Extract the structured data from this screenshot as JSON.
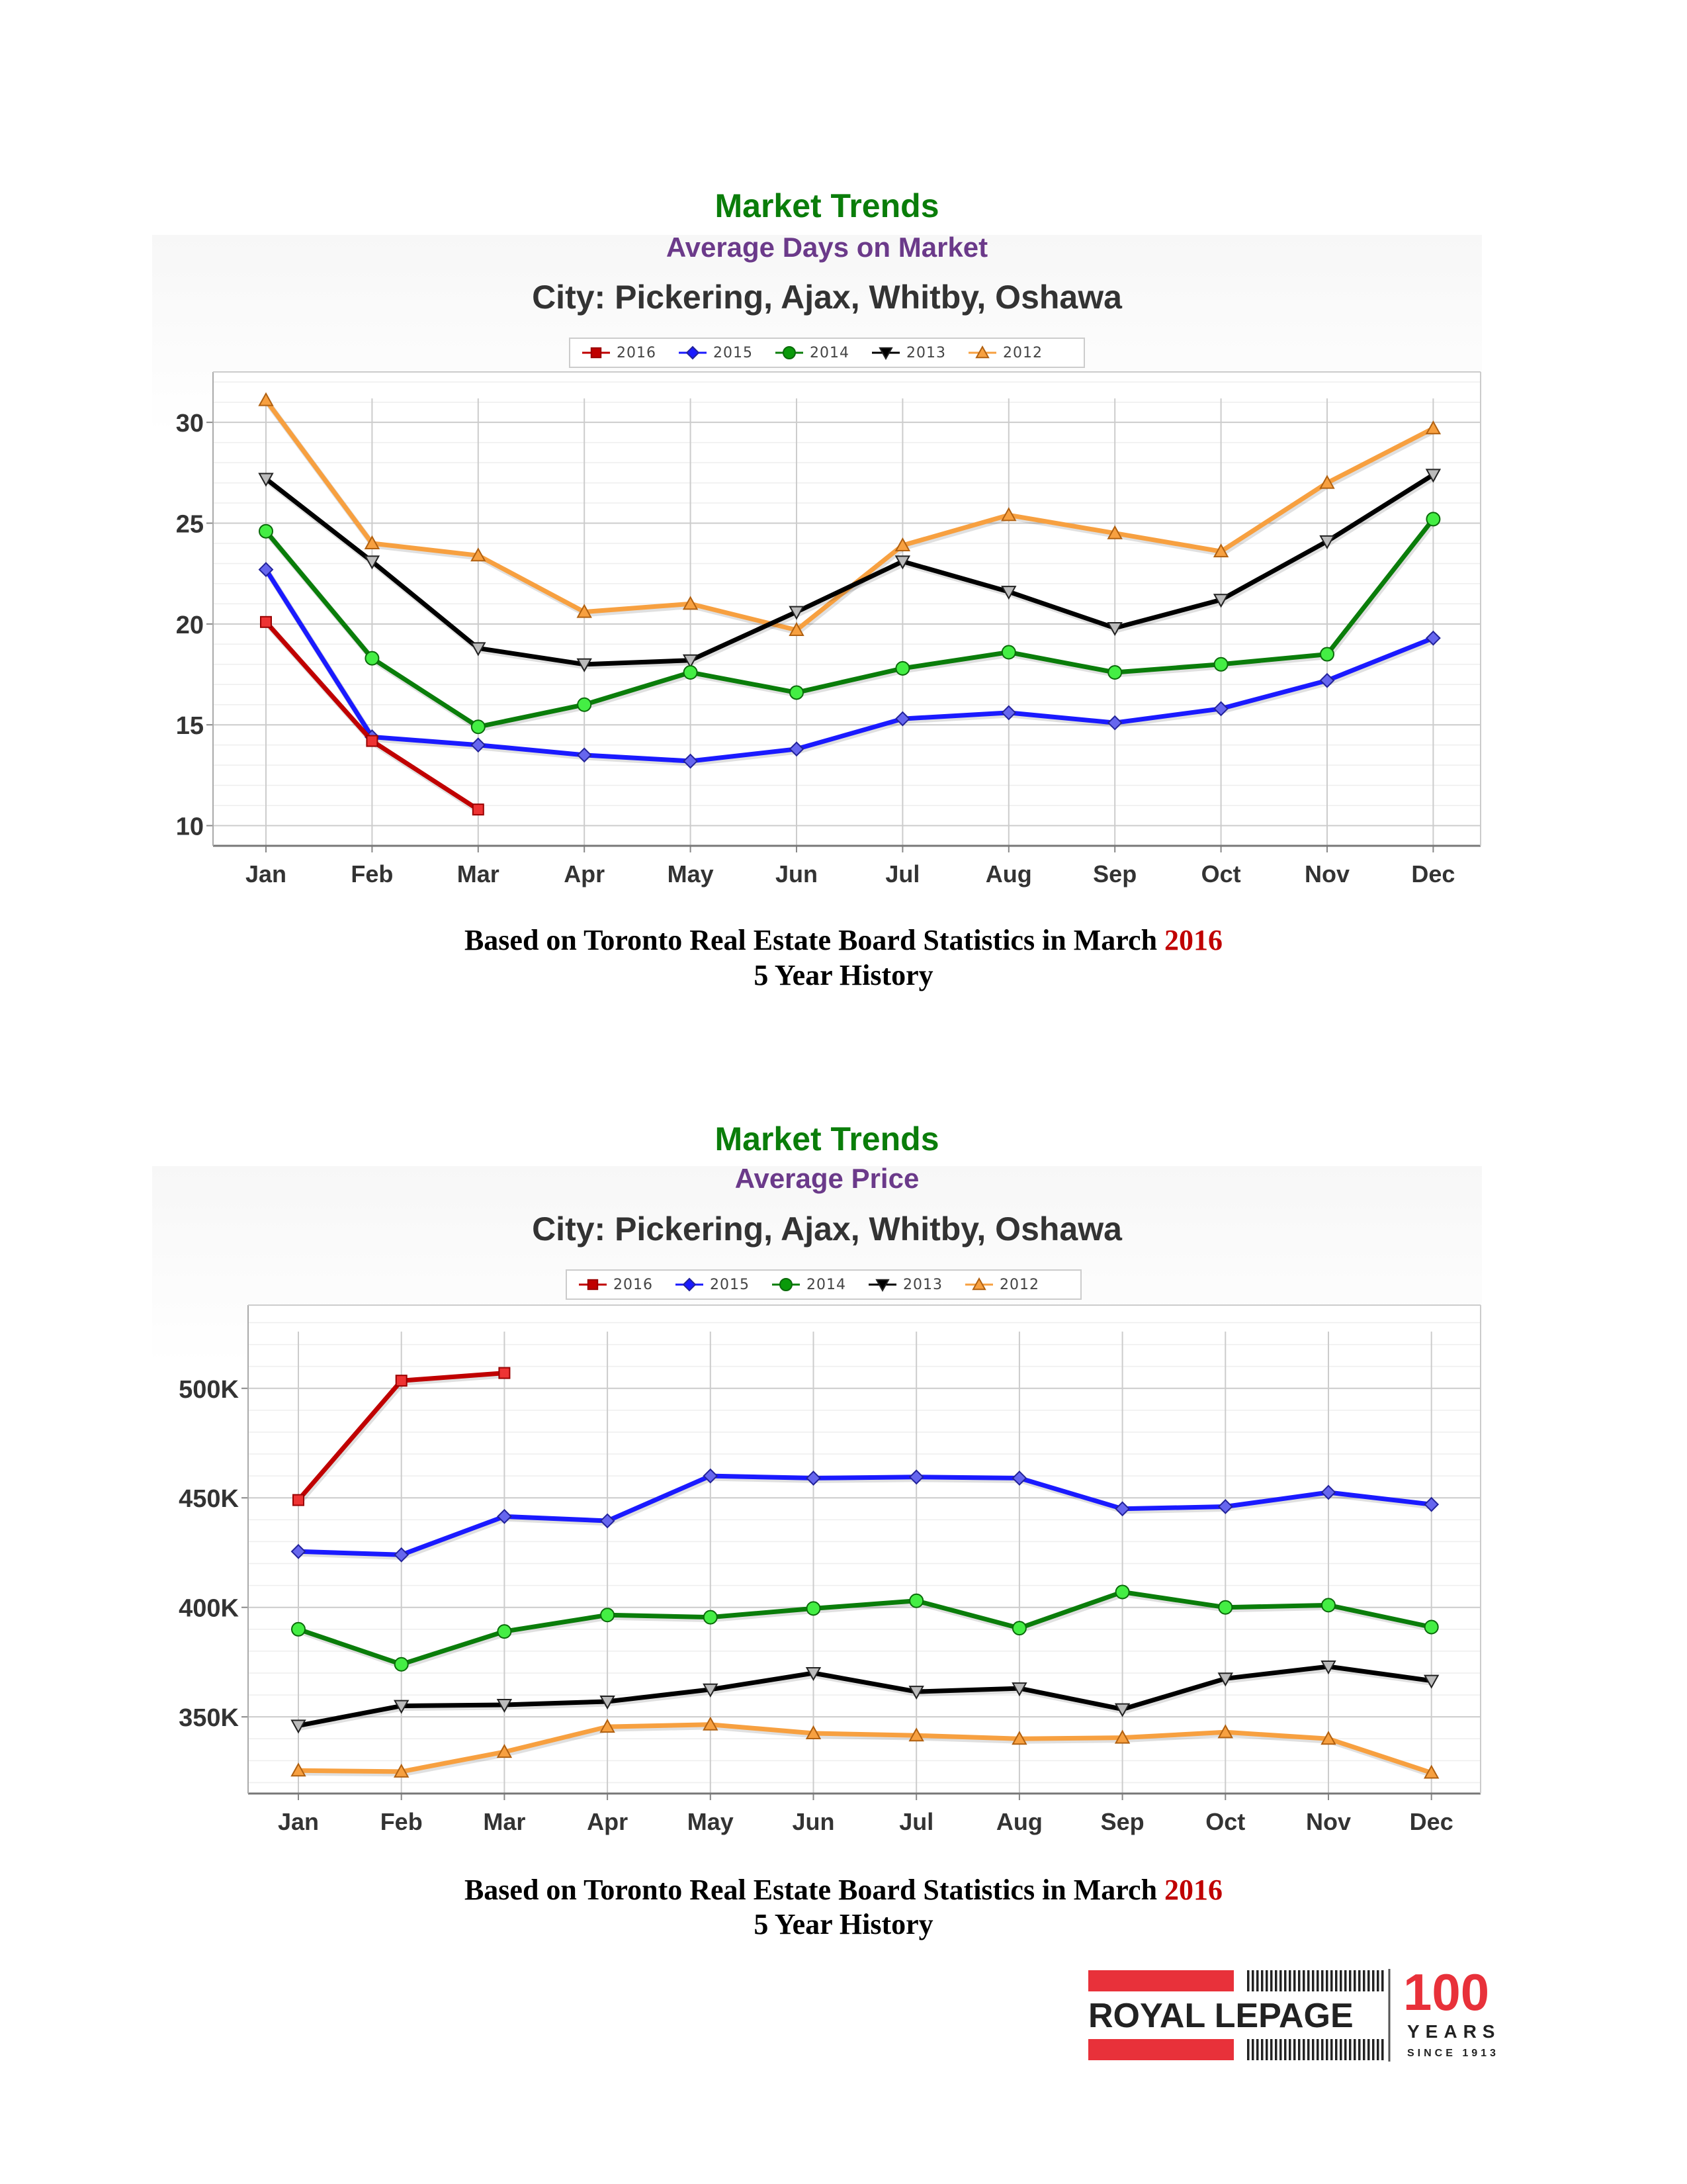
{
  "chart1": {
    "section_title": "Market Trends",
    "subtitle": "Average Days on Market",
    "city_title": "City: Pickering, Ajax, Whitby, Oshawa",
    "caption_line1": "Based on Toronto Real Estate Board Statistics in March",
    "caption_year": "2016",
    "caption_line2": "5  Year History"
  },
  "chart2": {
    "section_title": "Market Trends",
    "subtitle": "Average Price",
    "city_title": "City: Pickering, Ajax, Whitby, Oshawa",
    "caption_line1": "Based on Toronto Real Estate Board Statistics in March",
    "caption_year": "2016",
    "caption_line2": "5 Year History"
  },
  "logo": {
    "brand": "ROYAL LEPAGE",
    "anniversary": "100",
    "years": "YEARS",
    "since": "SINCE 1913",
    "brand_color": "#e8313a"
  },
  "colors": {
    "2016": "#c00000",
    "2015": "#1a1aff",
    "2014": "#0a7d0a",
    "2013": "#000000",
    "2012": "#f7a040"
  },
  "chart_data": [
    {
      "type": "line",
      "title": "Average Days on Market",
      "subtitle": "City: Pickering, Ajax, Whitby, Oshawa",
      "categories": [
        "Jan",
        "Feb",
        "Mar",
        "Apr",
        "May",
        "Jun",
        "Jul",
        "Aug",
        "Sep",
        "Oct",
        "Nov",
        "Dec"
      ],
      "y_ticks": [
        "10",
        "15",
        "20",
        "25",
        "30"
      ],
      "ylim": [
        9,
        32.5
      ],
      "legend_position": "top-center",
      "grid": true,
      "series": [
        {
          "name": "2016",
          "values": [
            20.1,
            14.2,
            10.8,
            null,
            null,
            null,
            null,
            null,
            null,
            null,
            null,
            null
          ]
        },
        {
          "name": "2015",
          "values": [
            22.7,
            14.4,
            14.0,
            13.5,
            13.2,
            13.8,
            15.3,
            15.6,
            15.1,
            15.8,
            17.2,
            19.3
          ]
        },
        {
          "name": "2014",
          "values": [
            24.6,
            18.3,
            14.9,
            16.0,
            17.6,
            16.6,
            17.8,
            18.6,
            17.6,
            18.0,
            18.5,
            25.2
          ]
        },
        {
          "name": "2013",
          "values": [
            27.2,
            23.1,
            18.8,
            18.0,
            18.2,
            20.6,
            23.1,
            21.6,
            19.8,
            21.2,
            24.1,
            27.4
          ]
        },
        {
          "name": "2012",
          "values": [
            31.1,
            24.0,
            23.4,
            20.6,
            21.0,
            19.7,
            23.9,
            25.4,
            24.5,
            23.6,
            27.0,
            29.7
          ]
        }
      ]
    },
    {
      "type": "line",
      "title": "Average Price",
      "subtitle": "City: Pickering, Ajax, Whitby, Oshawa",
      "categories": [
        "Jan",
        "Feb",
        "Mar",
        "Apr",
        "May",
        "Jun",
        "Jul",
        "Aug",
        "Sep",
        "Oct",
        "Nov",
        "Dec"
      ],
      "y_ticks": [
        "350K",
        "400K",
        "450K",
        "500K"
      ],
      "ylim": [
        315000,
        538000
      ],
      "legend_position": "top-center",
      "grid": true,
      "series": [
        {
          "name": "2016",
          "values": [
            449000,
            503500,
            507000,
            null,
            null,
            null,
            null,
            null,
            null,
            null,
            null,
            null
          ]
        },
        {
          "name": "2015",
          "values": [
            425500,
            424000,
            441500,
            439500,
            460000,
            459000,
            459500,
            459000,
            445000,
            446000,
            452500,
            447000
          ]
        },
        {
          "name": "2014",
          "values": [
            390000,
            374000,
            389000,
            396500,
            395500,
            399500,
            403000,
            390500,
            407000,
            400000,
            401000,
            391000
          ]
        },
        {
          "name": "2013",
          "values": [
            346000,
            355000,
            355500,
            357000,
            362500,
            370000,
            361500,
            363000,
            353500,
            367500,
            373000,
            366500
          ]
        },
        {
          "name": "2012",
          "values": [
            325500,
            325000,
            334000,
            345500,
            346500,
            342500,
            341500,
            340000,
            340500,
            343000,
            340000,
            324500
          ]
        }
      ]
    }
  ]
}
